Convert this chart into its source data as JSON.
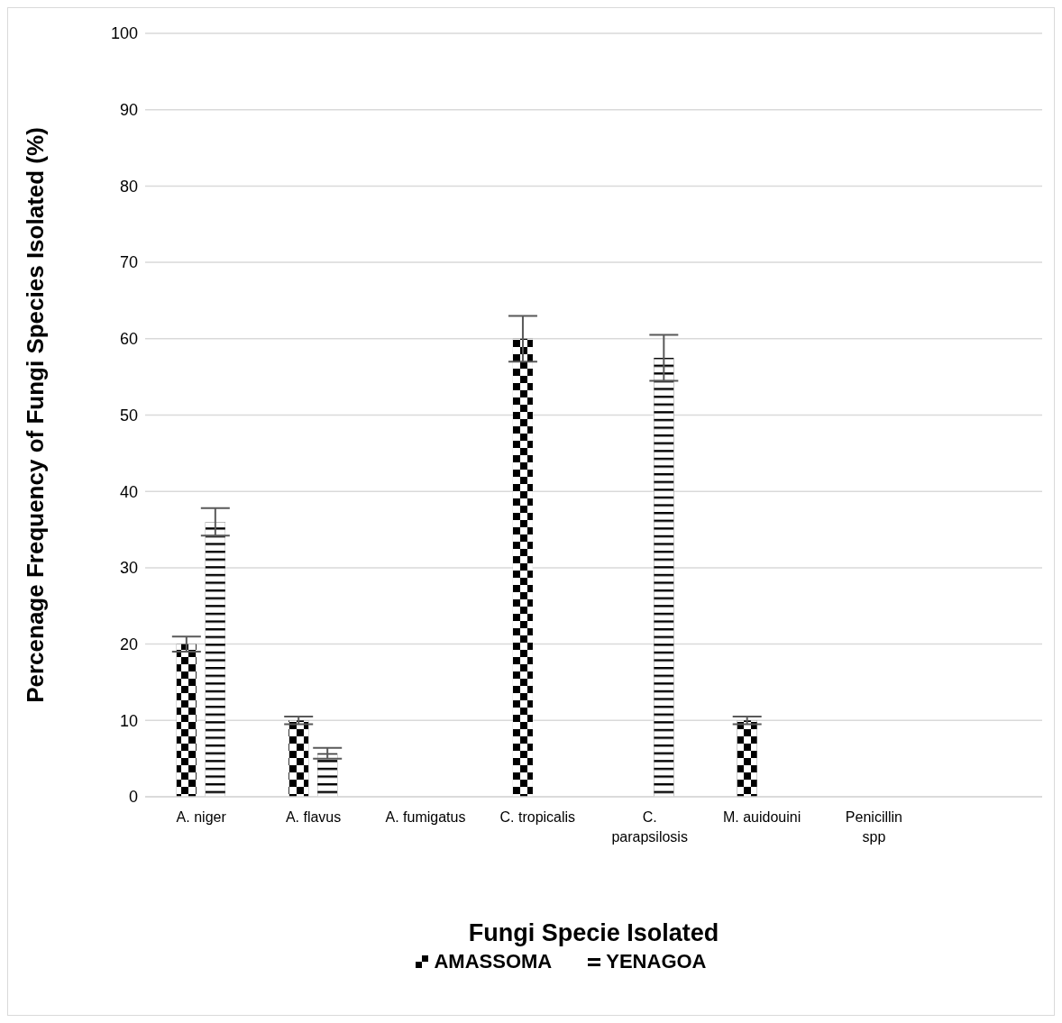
{
  "chart_data": {
    "type": "bar",
    "xlabel": "Fungi Specie Isolated",
    "ylabel": "Percenage Frequency of Fungi Species Isolated (%)",
    "categories": [
      "A. niger",
      "A. flavus",
      "A. fumigatus",
      "C. tropicalis",
      "C. parapsilosis",
      "M. auidouini",
      "Penicillin spp",
      null
    ],
    "series": [
      {
        "name": "AMASSOMA",
        "color": "#000000",
        "values": [
          20,
          10,
          0,
          60,
          0,
          10,
          0,
          null
        ],
        "errors": [
          1,
          0.5,
          null,
          3,
          null,
          0.5,
          null,
          null
        ]
      },
      {
        "name": "YENAGOA",
        "color": "#000000",
        "values": [
          36,
          5.7,
          0,
          0,
          57.5,
          0,
          0,
          null
        ],
        "errors": [
          1.8,
          0.7,
          null,
          null,
          3,
          null,
          null,
          null
        ]
      }
    ],
    "ylim": [
      0,
      100
    ],
    "yticks": [
      0,
      10,
      20,
      30,
      40,
      50,
      60,
      70,
      80,
      90,
      100
    ],
    "grid": "y",
    "legend": "bottom"
  }
}
